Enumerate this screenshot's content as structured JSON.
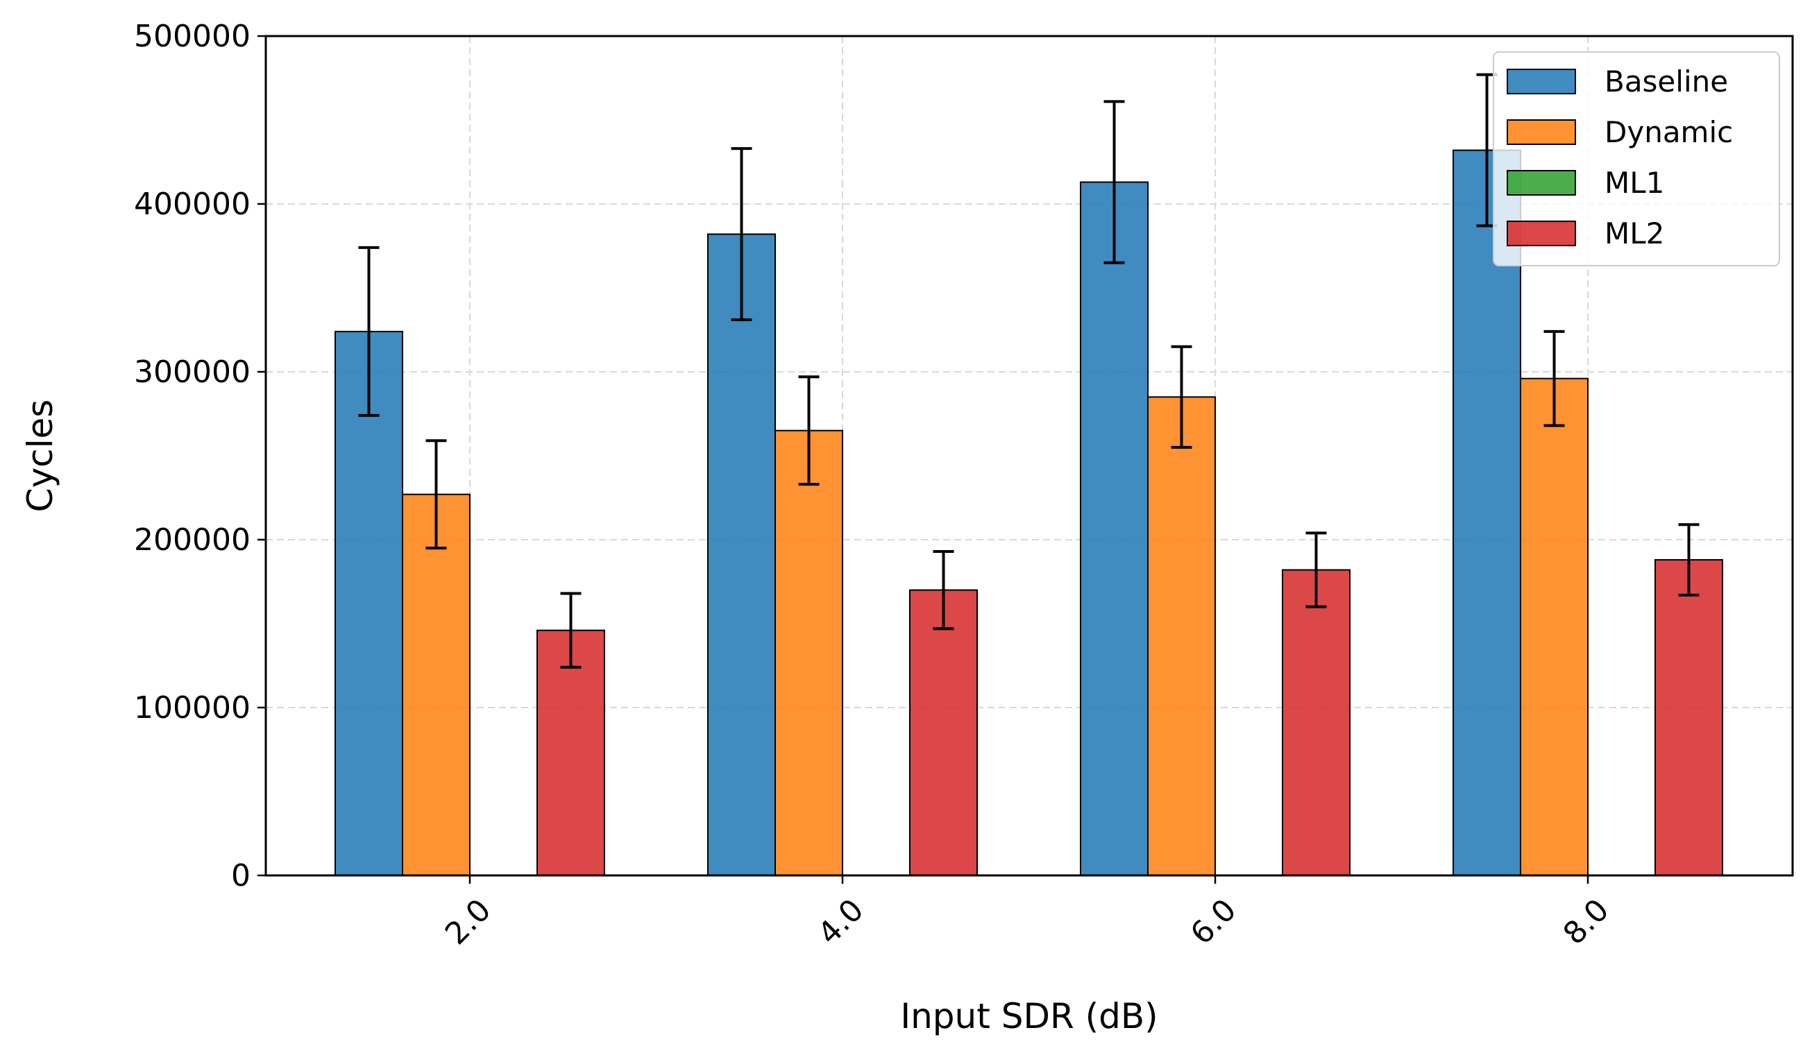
{
  "chart_data": {
    "type": "bar",
    "title": "",
    "xlabel": "Input SDR (dB)",
    "ylabel": "Cycles",
    "categories": [
      "2.0",
      "4.0",
      "6.0",
      "8.0"
    ],
    "ylim": [
      0,
      500000
    ],
    "yticks": [
      "0",
      "100000",
      "200000",
      "300000",
      "400000",
      "500000"
    ],
    "grid": true,
    "legend_position": "top-right",
    "series": [
      {
        "name": "Baseline",
        "color": "#1f77b4",
        "values": [
          324000,
          382000,
          413000,
          432000
        ],
        "errors": [
          50000,
          51000,
          48000,
          45000
        ]
      },
      {
        "name": "Dynamic",
        "color": "#ff7f0e",
        "values": [
          227000,
          265000,
          285000,
          296000
        ],
        "errors": [
          32000,
          32000,
          30000,
          28000
        ]
      },
      {
        "name": "ML1",
        "color": "#2ca02c",
        "values": [
          0,
          0,
          0,
          0
        ],
        "errors": [
          0,
          0,
          0,
          0
        ]
      },
      {
        "name": "ML2",
        "color": "#d62728",
        "values": [
          146000,
          170000,
          182000,
          188000
        ],
        "errors": [
          22000,
          23000,
          22000,
          21000
        ]
      }
    ]
  }
}
